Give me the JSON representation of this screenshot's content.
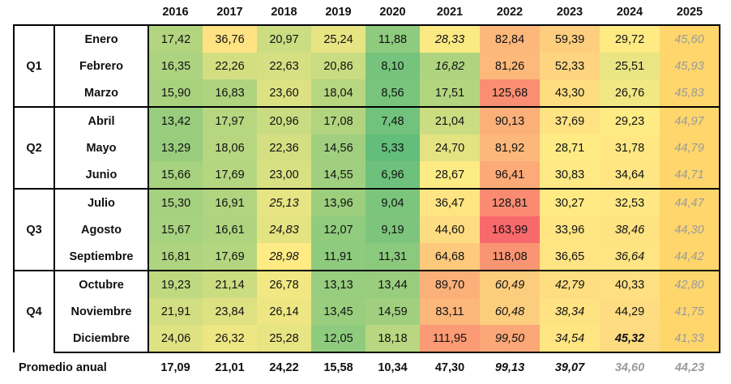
{
  "years": [
    "2016",
    "2017",
    "2018",
    "2019",
    "2020",
    "2021",
    "2022",
    "2023",
    "2024",
    "2025"
  ],
  "quarters": [
    {
      "label": "Q1",
      "months": [
        {
          "name": "Enero",
          "values": [
            "17,42",
            "36,76",
            "20,97",
            "25,24",
            "11,88",
            "28,33",
            "82,84",
            "59,39",
            "29,72",
            "45,60"
          ]
        },
        {
          "name": "Febrero",
          "values": [
            "16,35",
            "22,26",
            "22,63",
            "20,86",
            "8,10",
            "16,82",
            "81,26",
            "52,33",
            "25,51",
            "45,93"
          ]
        },
        {
          "name": "Marzo",
          "values": [
            "15,90",
            "16,83",
            "23,60",
            "18,04",
            "8,56",
            "17,51",
            "125,68",
            "43,30",
            "26,76",
            "45,83"
          ]
        }
      ]
    },
    {
      "label": "Q2",
      "months": [
        {
          "name": "Abril",
          "values": [
            "13,42",
            "17,97",
            "20,96",
            "17,08",
            "7,48",
            "21,04",
            "90,13",
            "37,69",
            "29,23",
            "44,97"
          ]
        },
        {
          "name": "Mayo",
          "values": [
            "13,29",
            "18,06",
            "22,36",
            "14,56",
            "5,33",
            "24,70",
            "81,92",
            "28,71",
            "31,78",
            "44,79"
          ]
        },
        {
          "name": "Junio",
          "values": [
            "15,66",
            "17,69",
            "23,00",
            "14,55",
            "6,96",
            "28,67",
            "96,41",
            "30,83",
            "34,64",
            "44,71"
          ]
        }
      ]
    },
    {
      "label": "Q3",
      "months": [
        {
          "name": "Julio",
          "values": [
            "15,30",
            "16,91",
            "25,13",
            "13,96",
            "9,04",
            "36,47",
            "128,81",
            "30,27",
            "32,53",
            "44,47"
          ]
        },
        {
          "name": "Agosto",
          "values": [
            "15,67",
            "16,61",
            "24,83",
            "12,07",
            "9,19",
            "44,60",
            "163,99",
            "33,96",
            "38,46",
            "44,30"
          ]
        },
        {
          "name": "Septiembre",
          "values": [
            "16,81",
            "17,69",
            "28,98",
            "11,91",
            "11,31",
            "64,68",
            "118,08",
            "36,65",
            "36,64",
            "44,42"
          ]
        }
      ]
    },
    {
      "label": "Q4",
      "months": [
        {
          "name": "Octubre",
          "values": [
            "19,23",
            "21,14",
            "26,78",
            "13,13",
            "13,44",
            "89,70",
            "60,49",
            "42,79",
            "40,33",
            "42,80"
          ]
        },
        {
          "name": "Noviembre",
          "values": [
            "21,91",
            "23,84",
            "26,14",
            "13,45",
            "14,59",
            "83,11",
            "60,48",
            "38,34",
            "44,29",
            "41,75"
          ]
        },
        {
          "name": "Diciembre",
          "values": [
            "24,06",
            "26,32",
            "25,28",
            "12,05",
            "18,18",
            "111,95",
            "99,50",
            "34,54",
            "45,32",
            "41,33"
          ]
        }
      ]
    }
  ],
  "average": {
    "label": "Promedio anual",
    "values": [
      "17,09",
      "21,01",
      "24,22",
      "15,58",
      "10,34",
      "47,30",
      "99,13",
      "39,07",
      "34,60",
      "44,23"
    ]
  },
  "italic_cells": [
    [
      0,
      5
    ],
    [
      0,
      9
    ],
    [
      1,
      5
    ],
    [
      1,
      9
    ],
    [
      2,
      9
    ],
    [
      3,
      9
    ],
    [
      4,
      9
    ],
    [
      5,
      9
    ],
    [
      6,
      2
    ],
    [
      6,
      9
    ],
    [
      7,
      2
    ],
    [
      7,
      8
    ],
    [
      7,
      9
    ],
    [
      8,
      2
    ],
    [
      8,
      8
    ],
    [
      8,
      9
    ],
    [
      9,
      6
    ],
    [
      9,
      7
    ],
    [
      9,
      9
    ],
    [
      10,
      6
    ],
    [
      10,
      7
    ],
    [
      10,
      9
    ],
    [
      11,
      6
    ],
    [
      11,
      7
    ],
    [
      11,
      8
    ],
    [
      11,
      9
    ]
  ],
  "bold_cells": [
    [
      11,
      8
    ]
  ],
  "grey_cells": [
    [
      0,
      9
    ],
    [
      1,
      9
    ],
    [
      2,
      9
    ],
    [
      3,
      9
    ],
    [
      4,
      9
    ],
    [
      5,
      9
    ],
    [
      6,
      9
    ],
    [
      7,
      9
    ],
    [
      8,
      9
    ],
    [
      9,
      9
    ],
    [
      10,
      9
    ],
    [
      11,
      9
    ]
  ],
  "average_italic": [
    6,
    7,
    8,
    9
  ],
  "average_grey": [
    8,
    9
  ],
  "color_scale": {
    "low": "#63be7b",
    "mid": "#ffeb84",
    "high": "#f8696b",
    "low_value": 5.33,
    "mid_value": 28.9,
    "high_value": 163.99
  },
  "column_2025_fill": "#ffd66b"
}
